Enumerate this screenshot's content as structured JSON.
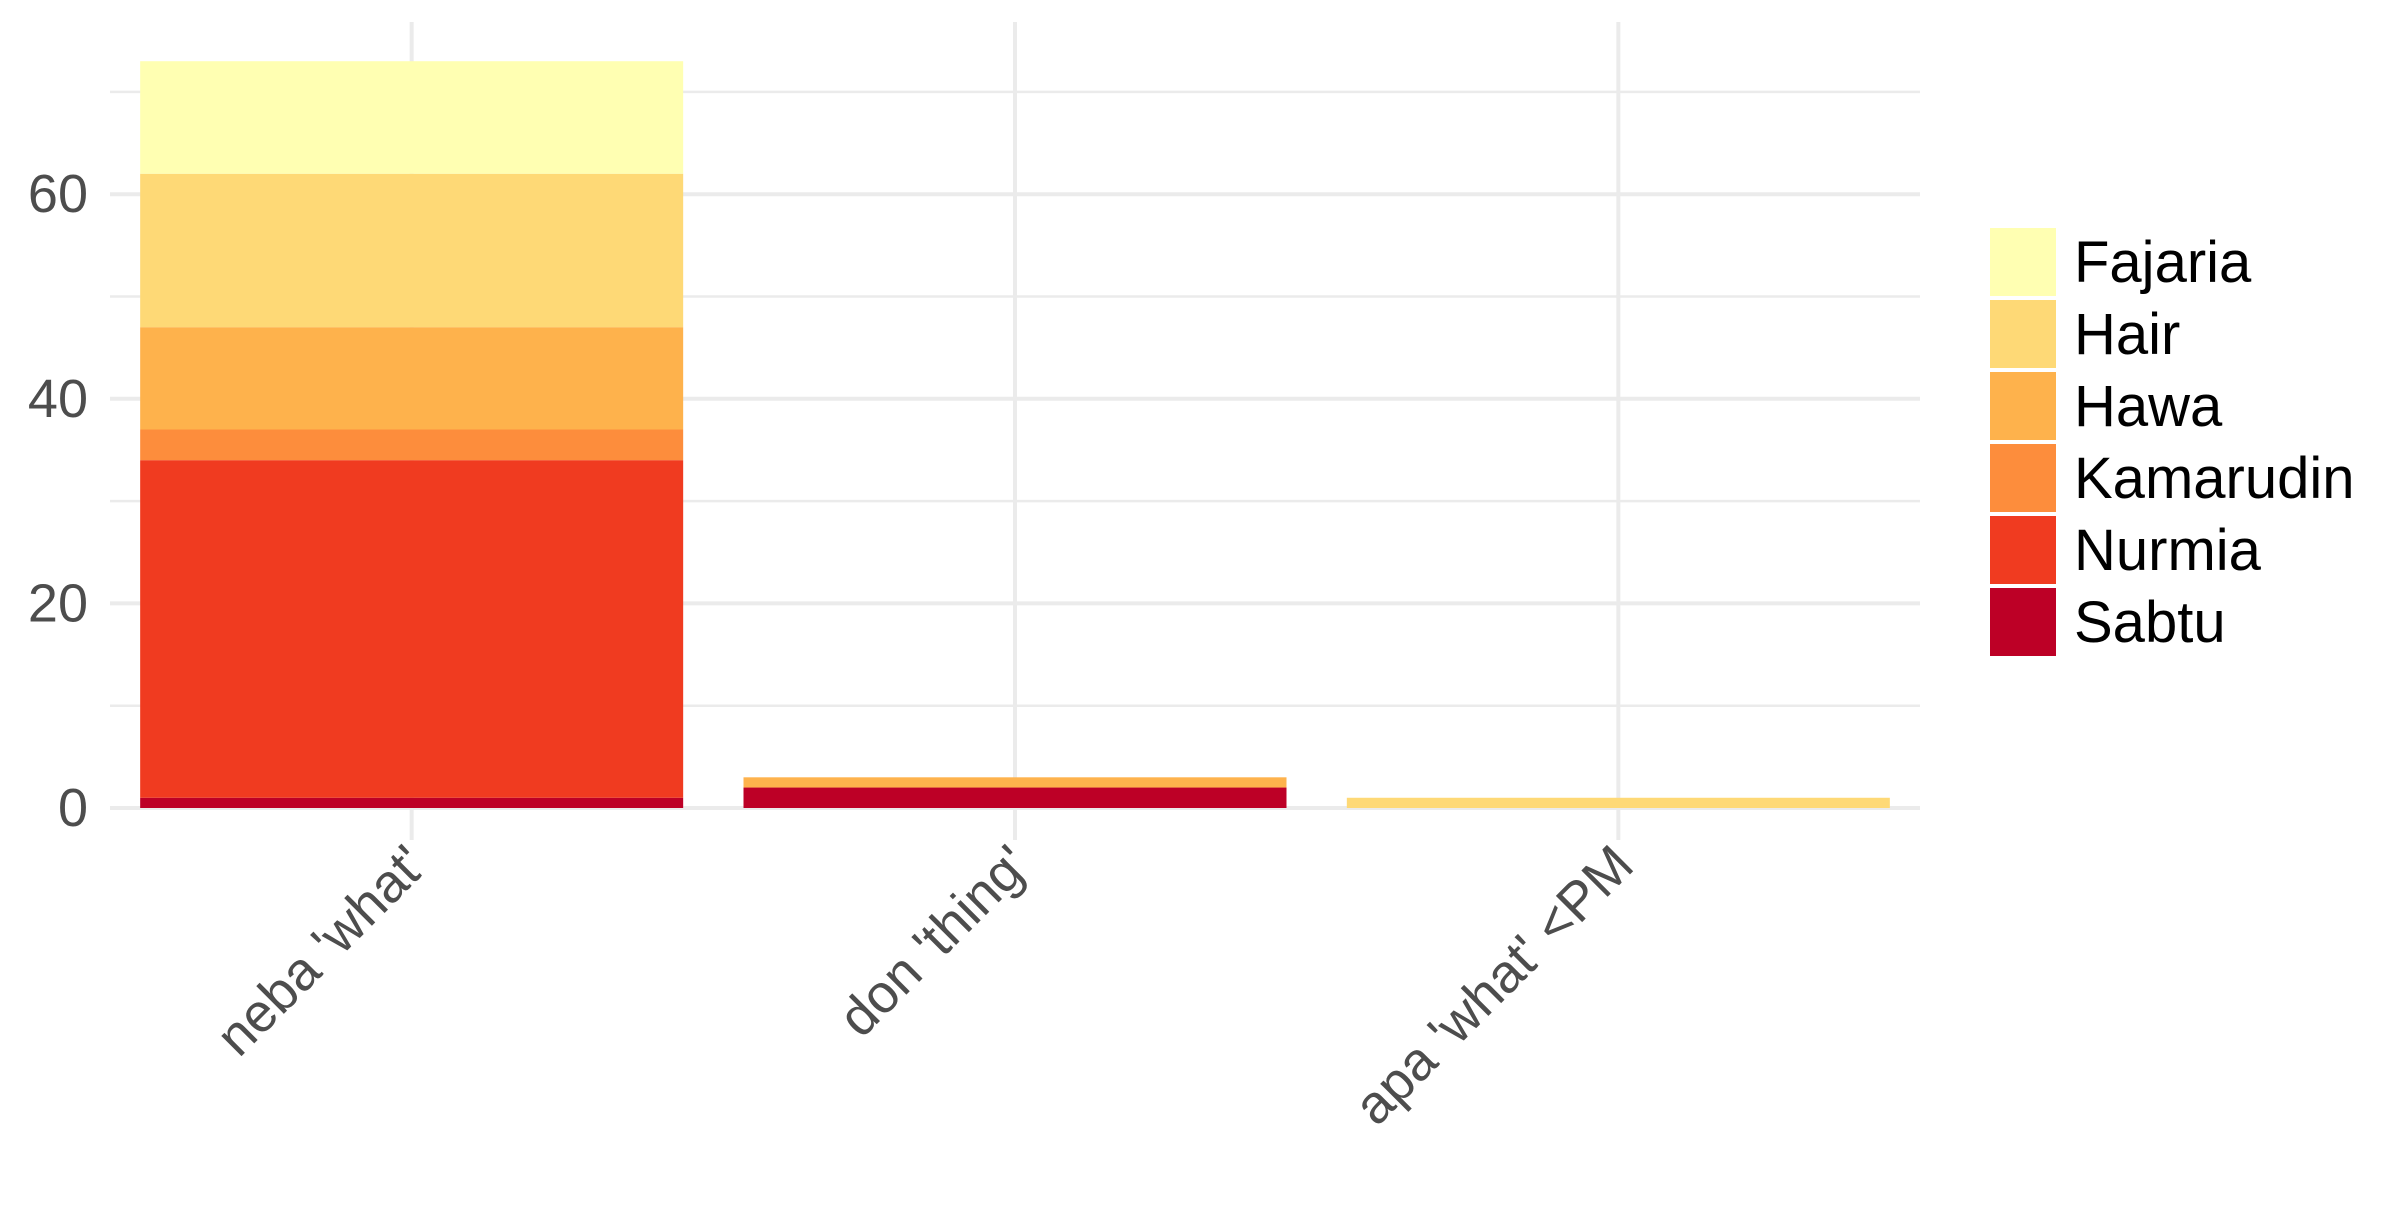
{
  "chart_data": {
    "type": "bar",
    "stacked": true,
    "categories": [
      "neba 'what'",
      "don 'thing'",
      "apa 'what' <PM"
    ],
    "series": [
      {
        "name": "Sabtu",
        "color": "#bd0026",
        "values": [
          1,
          2,
          0
        ]
      },
      {
        "name": "Nurmia",
        "color": "#f03b20",
        "values": [
          33,
          0,
          0
        ]
      },
      {
        "name": "Kamarudin",
        "color": "#fd8d3c",
        "values": [
          3,
          0,
          0
        ]
      },
      {
        "name": "Hawa",
        "color": "#feb24c",
        "values": [
          10,
          1,
          0
        ]
      },
      {
        "name": "Hair",
        "color": "#fed976",
        "values": [
          15,
          0,
          1
        ]
      },
      {
        "name": "Fajaria",
        "color": "#ffffb2",
        "values": [
          11,
          0,
          0
        ]
      }
    ],
    "legend_order": [
      "Fajaria",
      "Hair",
      "Hawa",
      "Kamarudin",
      "Nurmia",
      "Sabtu"
    ],
    "yticks": [
      0,
      20,
      40,
      60
    ],
    "ylim": [
      0,
      76.6
    ],
    "legend_position": "right",
    "grid": true,
    "xlabel": "",
    "ylabel": "",
    "title": ""
  }
}
